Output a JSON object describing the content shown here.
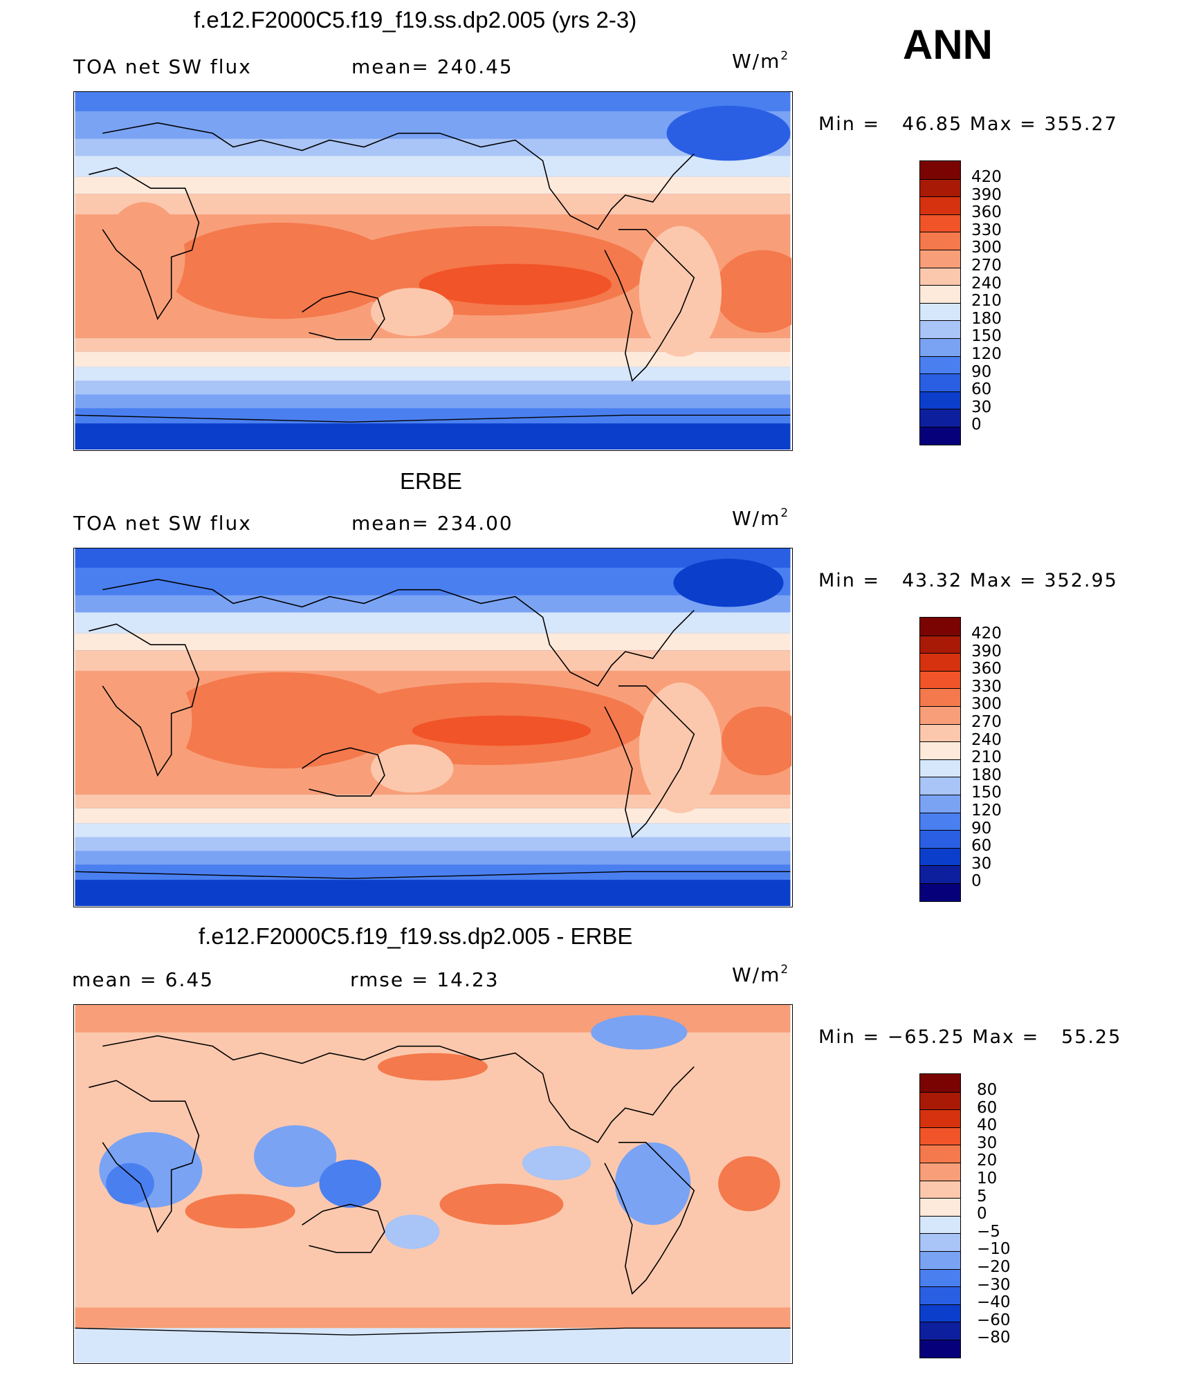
{
  "season": "ANN",
  "units": {
    "base": "W/m",
    "exp": "2"
  },
  "palette_abs": [
    "#06007a",
    "#0e1f9e",
    "#0b3ecb",
    "#2a5fe4",
    "#4a7ff0",
    "#7aa3f4",
    "#a9c4f6",
    "#d6e6fb",
    "#fdeadb",
    "#fcc8ad",
    "#f89f79",
    "#f4794c",
    "#f15428",
    "#d6320f",
    "#a91a06",
    "#7a0401"
  ],
  "palette_diff": [
    "#06007a",
    "#0e1f9e",
    "#0b3ecb",
    "#2a5fe4",
    "#4a7ff0",
    "#7aa3f4",
    "#a9c4f6",
    "#d6e6fb",
    "#fdeadb",
    "#fcc8ad",
    "#f89f79",
    "#f4794c",
    "#f15428",
    "#d6320f",
    "#a91a06",
    "#7a0401"
  ],
  "panels": [
    {
      "title": "f.e12.F2000C5.f19_f19.ss.dp2.005 (yrs 2-3)",
      "left_label": "TOA net SW flux",
      "center_label": "mean= 240.45",
      "minmax": "Min =   46.85 Max = 355.27",
      "colorbar_labels": [
        "420",
        "390",
        "360",
        "330",
        "300",
        "270",
        "240",
        "210",
        "180",
        "150",
        "120",
        "90",
        "60",
        "30",
        "0"
      ]
    },
    {
      "title": "ERBE",
      "left_label": "TOA net SW flux",
      "center_label": "mean= 234.00",
      "minmax": "Min =   43.32 Max = 352.95",
      "colorbar_labels": [
        "420",
        "390",
        "360",
        "330",
        "300",
        "270",
        "240",
        "210",
        "180",
        "150",
        "120",
        "90",
        "60",
        "30",
        "0"
      ]
    },
    {
      "title": "f.e12.F2000C5.f19_f19.ss.dp2.005 - ERBE",
      "left_label": "mean =    6.45",
      "center_label": "rmse =   14.23",
      "minmax": "Min = −65.25 Max =   55.25",
      "colorbar_labels": [
        "80",
        "60",
        "40",
        "30",
        "20",
        "10",
        "5",
        "0",
        "−5",
        "−10",
        "−20",
        "−30",
        "−40",
        "−60",
        "−80"
      ]
    }
  ],
  "chart_data": [
    {
      "type": "heatmap",
      "title": "f.e12.F2000C5.f19_f19.ss.dp2.005 (yrs 2-3)",
      "variable": "TOA net SW flux",
      "units": "W/m2",
      "mean": 240.45,
      "min": 46.85,
      "max": 355.27,
      "levels": [
        0,
        30,
        60,
        90,
        120,
        150,
        180,
        210,
        240,
        270,
        300,
        330,
        360,
        390,
        420
      ]
    },
    {
      "type": "heatmap",
      "title": "ERBE",
      "variable": "TOA net SW flux",
      "units": "W/m2",
      "mean": 234.0,
      "min": 43.32,
      "max": 352.95,
      "levels": [
        0,
        30,
        60,
        90,
        120,
        150,
        180,
        210,
        240,
        270,
        300,
        330,
        360,
        390,
        420
      ]
    },
    {
      "type": "heatmap",
      "title": "f.e12.F2000C5.f19_f19.ss.dp2.005 - ERBE",
      "units": "W/m2",
      "mean": 6.45,
      "rmse": 14.23,
      "min": -65.25,
      "max": 55.25,
      "levels": [
        -80,
        -60,
        -40,
        -30,
        -20,
        -10,
        -5,
        0,
        5,
        10,
        20,
        30,
        40,
        60,
        80
      ]
    }
  ]
}
